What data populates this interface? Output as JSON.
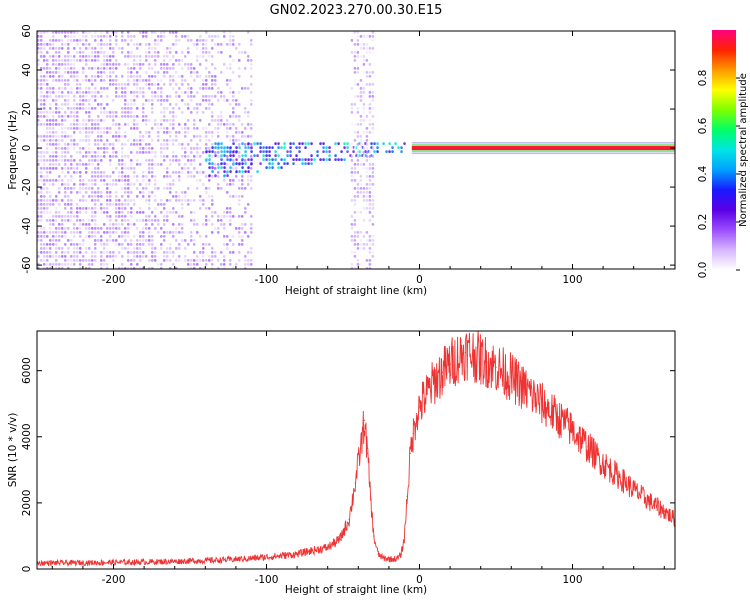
{
  "figure": {
    "title": "GN02.2023.270.00.30.E15"
  },
  "chart_data": [
    {
      "type": "heatmap",
      "title": "GN02.2023.270.00.30.E15",
      "xlabel": "Height of straight line (km)",
      "ylabel": "Frequency (Hz)",
      "xlim": [
        -250,
        167
      ],
      "ylim": [
        -62,
        60
      ],
      "x_ticks": [
        -200,
        -100,
        0,
        100
      ],
      "y_ticks": [
        60,
        40,
        20,
        0,
        -20,
        -40,
        -60
      ],
      "colorbar": {
        "label": "Normalized spectral amplitude",
        "range": [
          0.0,
          1.0
        ],
        "ticks": [
          0.0,
          0.2,
          0.4,
          0.6,
          0.8
        ],
        "colormap": [
          "#ffffff",
          "#d6b6ff",
          "#9b4dff",
          "#5a00e6",
          "#1a1aff",
          "#00a0ff",
          "#00e5e5",
          "#00ff66",
          "#7dff00",
          "#ffff00",
          "#ff9900",
          "#ff2200",
          "#ff007f"
        ]
      },
      "regions": [
        {
          "x_range": [
            -250,
            -110
          ],
          "freq_range": [
            -62,
            60
          ],
          "amplitude": 0.08,
          "pattern": "broadband speckle"
        },
        {
          "x_range": [
            -140,
            -10
          ],
          "freq_range": [
            -15,
            8
          ],
          "amplitude": 0.3,
          "pattern": "narrowing band"
        },
        {
          "x_range": [
            -45,
            -30
          ],
          "freq_range": [
            -62,
            60
          ],
          "amplitude": 0.06,
          "pattern": "broadband stripe"
        },
        {
          "x_range": [
            -5,
            167
          ],
          "freq_range": [
            -1,
            1
          ],
          "amplitude": 0.95,
          "pattern": "narrow line at 0 Hz"
        }
      ]
    },
    {
      "type": "line",
      "xlabel": "Height of straight line (km)",
      "ylabel": "SNR (10 * v/v)",
      "xlim": [
        -250,
        167
      ],
      "ylim": [
        0,
        7200
      ],
      "x_ticks": [
        -200,
        -100,
        0,
        100
      ],
      "y_ticks": [
        0,
        2000,
        4000,
        6000
      ],
      "series": [
        {
          "color": "#ee3333",
          "x": [
            -250,
            -220,
            -190,
            -160,
            -130,
            -110,
            -95,
            -80,
            -70,
            -60,
            -52,
            -46,
            -42,
            -38,
            -36,
            -34,
            -32,
            -30,
            -27,
            -24,
            -20,
            -17,
            -14,
            -12,
            -10,
            -8,
            -6,
            -4,
            -2,
            0,
            5,
            10,
            15,
            20,
            25,
            30,
            35,
            40,
            45,
            50,
            60,
            70,
            80,
            90,
            100,
            110,
            120,
            130,
            140,
            150,
            160,
            167
          ],
          "values": [
            180,
            190,
            205,
            230,
            270,
            320,
            380,
            450,
            560,
            650,
            900,
            1500,
            2600,
            3800,
            4500,
            3500,
            2200,
            1000,
            450,
            330,
            300,
            300,
            320,
            450,
            900,
            2200,
            3500,
            4100,
            4700,
            4900,
            5300,
            5700,
            5950,
            6200,
            6400,
            6550,
            6500,
            6350,
            6250,
            6100,
            5800,
            5400,
            5000,
            4600,
            4200,
            3700,
            3200,
            2800,
            2400,
            2050,
            1750,
            1500
          ]
        }
      ]
    }
  ]
}
